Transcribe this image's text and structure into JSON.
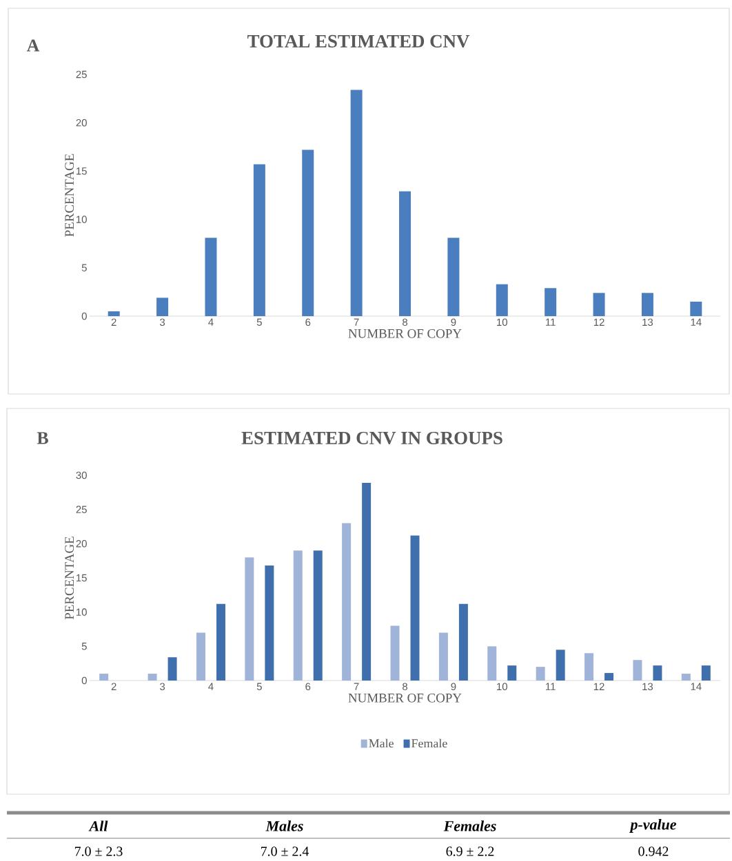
{
  "chart_data": [
    {
      "type": "bar",
      "title": "TOTAL ESTIMATED CNV",
      "xlabel": "NUMBER OF COPY",
      "ylabel": "PERCENTAGE",
      "annotations": [
        "A"
      ],
      "categories": [
        "2",
        "3",
        "4",
        "5",
        "6",
        "7",
        "8",
        "9",
        "10",
        "11",
        "12",
        "13",
        "14"
      ],
      "values": [
        0.5,
        1.9,
        8.1,
        15.7,
        17.2,
        23.4,
        12.9,
        8.1,
        3.3,
        2.9,
        2.4,
        2.4,
        1.5
      ],
      "color": "#4a7ebf",
      "ylim": [
        0,
        25
      ],
      "yticks": [
        0,
        5,
        10,
        15,
        20,
        25
      ]
    },
    {
      "type": "bar",
      "title": "ESTIMATED CNV IN GROUPS",
      "xlabel": "NUMBER OF COPY",
      "ylabel": "PERCENTAGE",
      "annotations": [
        "B"
      ],
      "categories": [
        "2",
        "3",
        "4",
        "5",
        "6",
        "7",
        "8",
        "9",
        "10",
        "11",
        "12",
        "13",
        "14"
      ],
      "series": [
        {
          "name": "Male",
          "color": "#9fb4d8",
          "values": [
            1,
            1,
            7,
            18,
            19,
            23,
            8,
            7,
            5,
            2,
            4,
            3,
            1
          ]
        },
        {
          "name": "Female",
          "color": "#3f6fad",
          "values": [
            0,
            3.4,
            11.2,
            16.8,
            19,
            28.9,
            21.2,
            11.2,
            2.2,
            4.5,
            1.1,
            2.2,
            2.2
          ]
        }
      ],
      "ylim": [
        0,
        30
      ],
      "yticks": [
        0,
        5,
        10,
        15,
        20,
        25,
        30
      ],
      "legend": "bottom"
    },
    {
      "type": "other",
      "annotations": [
        "All",
        "Males",
        "Females",
        "p-value",
        "7.0 ± 2.3",
        "7.0 ± 2.4",
        "6.9 ± 2.2",
        "0.942"
      ]
    }
  ]
}
